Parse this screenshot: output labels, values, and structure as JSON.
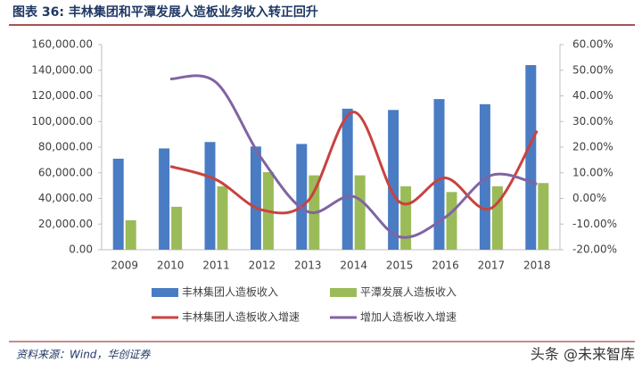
{
  "chart_data": {
    "type": "bar",
    "title": "图表 36: 丰林集团和平潭发展人造板业务收入转正回升",
    "source": "资料来源：Wind，华创证券",
    "watermark": "头条 @未来智库",
    "categories": [
      "2009",
      "2010",
      "2011",
      "2012",
      "2013",
      "2014",
      "2015",
      "2016",
      "2017",
      "2018"
    ],
    "series": [
      {
        "name": "丰林集团人造板收入",
        "type": "bar",
        "color": "#4a7cc4",
        "values": [
          71000,
          79000,
          84000,
          80500,
          82500,
          110000,
          109000,
          117500,
          113500,
          144000
        ]
      },
      {
        "name": "平潭发展人造板收入",
        "type": "bar",
        "color": "#9bbb59",
        "values": [
          23000,
          33500,
          49500,
          60500,
          58000,
          58000,
          49500,
          45000,
          49500,
          52000
        ]
      },
      {
        "name": "丰林集团人造板收入增速",
        "type": "line",
        "axis": "y2",
        "color": "#c9423f",
        "values": [
          null,
          12.5,
          7.3,
          -4.5,
          -1,
          33.7,
          -1.4,
          8,
          -3.8,
          26.4
        ]
      },
      {
        "name": "增加人造板收入增速",
        "type": "line",
        "axis": "y2",
        "color": "#8064a2",
        "values": [
          null,
          46.6,
          45.2,
          15.3,
          -5.2,
          0.7,
          -15,
          -7.3,
          9,
          5.6
        ]
      }
    ],
    "ylim": [
      0,
      160000
    ],
    "yticks": [
      {
        "value": 0,
        "label": "0.00"
      },
      {
        "value": 20000,
        "label": "20,000.00"
      },
      {
        "value": 40000,
        "label": "40,000.00"
      },
      {
        "value": 60000,
        "label": "60,000.00"
      },
      {
        "value": 80000,
        "label": "80,000.00"
      },
      {
        "value": 100000,
        "label": "100,000.00"
      },
      {
        "value": 120000,
        "label": "120,000.00"
      },
      {
        "value": 140000,
        "label": "140,000.00"
      },
      {
        "value": 160000,
        "label": "160,000.00"
      }
    ],
    "y2lim": [
      -20,
      60
    ],
    "y2ticks": [
      {
        "value": -20,
        "label": "-20.00%"
      },
      {
        "value": -10,
        "label": "-10.00%"
      },
      {
        "value": 0,
        "label": "0.00%"
      },
      {
        "value": 10,
        "label": "10.00%"
      },
      {
        "value": 20,
        "label": "20.00%"
      },
      {
        "value": 30,
        "label": "30.00%"
      },
      {
        "value": 40,
        "label": "40.00%"
      },
      {
        "value": 50,
        "label": "50.00%"
      },
      {
        "value": 60,
        "label": "60.00%"
      }
    ]
  }
}
